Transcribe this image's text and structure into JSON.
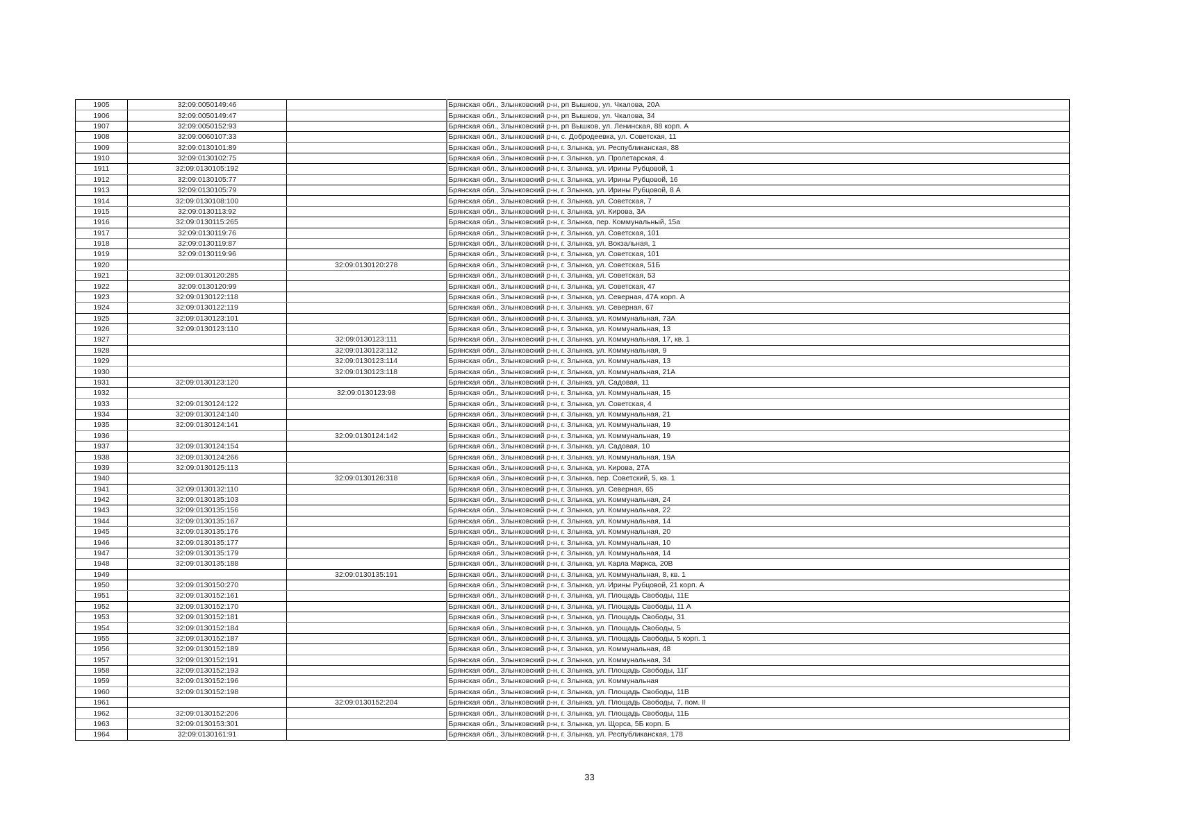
{
  "table": {
    "rows": [
      [
        "1905",
        "32:09:0050149:46",
        "",
        "Брянская обл., Злынковский р-н, рп Вышков, ул. Чкалова, 20А"
      ],
      [
        "1906",
        "32:09:0050149:47",
        "",
        "Брянская обл., Злынковский р-н, рп Вышков, ул. Чкалова, 34"
      ],
      [
        "1907",
        "32:09:0050152:93",
        "",
        "Брянская обл., Злынковский р-н, рп Вышков, ул. Ленинская, 88 корп. А"
      ],
      [
        "1908",
        "32:09:0060107:33",
        "",
        "Брянская обл., Злынковский р-н, с. Добродеевка, ул. Советская, 11"
      ],
      [
        "1909",
        "32:09:0130101:89",
        "",
        "Брянская обл., Злынковский р-н, г. Злынка, ул. Республиканская, 88"
      ],
      [
        "1910",
        "32:09:0130102:75",
        "",
        "Брянская обл., Злынковский р-н, г. Злынка, ул. Пролетарская, 4"
      ],
      [
        "1911",
        "32:09:0130105:192",
        "",
        "Брянская обл., Злынковский р-н, г. Злынка, ул. Ирины Рубцовой, 1"
      ],
      [
        "1912",
        "32:09:0130105:77",
        "",
        "Брянская обл., Злынковский р-н, г. Злынка, ул. Ирины Рубцовой, 16"
      ],
      [
        "1913",
        "32:09:0130105:79",
        "",
        "Брянская обл., Злынковский р-н, г. Злынка, ул. Ирины Рубцовой, 8 А"
      ],
      [
        "1914",
        "32:09:0130108:100",
        "",
        "Брянская обл., Злынковский р-н, г. Злынка, ул. Советская, 7"
      ],
      [
        "1915",
        "32:09:0130113:92",
        "",
        "Брянская обл., Злынковский р-н, г. Злынка, ул. Кирова, 3А"
      ],
      [
        "1916",
        "32:09:0130115:265",
        "",
        "Брянская обл., Злынковский р-н, г. Злынка, пер. Коммунальный, 15а"
      ],
      [
        "1917",
        "32:09:0130119:76",
        "",
        "Брянская обл., Злынковский р-н, г. Злынка, ул. Советская, 101"
      ],
      [
        "1918",
        "32:09:0130119:87",
        "",
        "Брянская обл., Злынковский р-н, г. Злынка, ул. Вокзальная, 1"
      ],
      [
        "1919",
        "32:09:0130119:96",
        "",
        "Брянская обл., Злынковский р-н, г. Злынка, ул. Советская, 101"
      ],
      [
        "1920",
        "",
        "32:09:0130120:278",
        "Брянская обл., Злынковский р-н, г. Злынка, ул. Советская, 51Б"
      ],
      [
        "1921",
        "32:09:0130120:285",
        "",
        "Брянская обл., Злынковский р-н, г. Злынка, ул. Советская, 53"
      ],
      [
        "1922",
        "32:09:0130120:99",
        "",
        "Брянская обл., Злынковский р-н, г. Злынка, ул. Советская, 47"
      ],
      [
        "1923",
        "32:09:0130122:118",
        "",
        "Брянская обл., Злынковский р-н, г. Злынка, ул. Северная, 47А корп. А"
      ],
      [
        "1924",
        "32:09:0130122:119",
        "",
        "Брянская обл., Злынковский р-н, г. Злынка, ул. Северная, 67"
      ],
      [
        "1925",
        "32:09:0130123:101",
        "",
        "Брянская обл., Злынковский р-н, г. Злынка, ул. Коммунальная, 73А"
      ],
      [
        "1926",
        "32:09:0130123:110",
        "",
        "Брянская обл., Злынковский р-н, г. Злынка, ул. Коммунальная, 13"
      ],
      [
        "1927",
        "",
        "32:09:0130123:111",
        "Брянская обл., Злынковский р-н, г. Злынка, ул. Коммунальная, 17, кв. 1"
      ],
      [
        "1928",
        "",
        "32:09:0130123:112",
        "Брянская обл., Злынковский р-н, г. Злынка, ул. Коммунальная, 9"
      ],
      [
        "1929",
        "",
        "32:09:0130123:114",
        "Брянская обл., Злынковский р-н, г. Злынка, ул. Коммунальная, 13"
      ],
      [
        "1930",
        "",
        "32:09:0130123:118",
        "Брянская обл., Злынковский р-н, г. Злынка, ул. Коммунальная, 21А"
      ],
      [
        "1931",
        "32:09:0130123:120",
        "",
        "Брянская обл., Злынковский р-н, г. Злынка, ул. Садовая, 11"
      ],
      [
        "1932",
        "",
        "32:09:0130123:98",
        "Брянская обл., Злынковский р-н, г. Злынка, ул. Коммунальная, 15"
      ],
      [
        "1933",
        "32:09:0130124:122",
        "",
        "Брянская обл., Злынковский р-н, г. Злынка, ул. Советская, 4"
      ],
      [
        "1934",
        "32:09:0130124:140",
        "",
        "Брянская обл., Злынковский р-н, г. Злынка, ул. Коммунальная, 21"
      ],
      [
        "1935",
        "32:09:0130124:141",
        "",
        "Брянская обл., Злынковский р-н, г. Злынка, ул. Коммунальная, 19"
      ],
      [
        "1936",
        "",
        "32:09:0130124:142",
        "Брянская обл., Злынковский р-н, г. Злынка, ул. Коммунальная, 19"
      ],
      [
        "1937",
        "32:09:0130124:154",
        "",
        "Брянская обл., Злынковский р-н, г. Злынка, ул. Садовая, 10"
      ],
      [
        "1938",
        "32:09:0130124:266",
        "",
        "Брянская обл., Злынковский р-н, г. Злынка, ул. Коммунальная, 19А"
      ],
      [
        "1939",
        "32:09:0130125:113",
        "",
        "Брянская обл., Злынковский р-н, г. Злынка, ул. Кирова, 27А"
      ],
      [
        "1940",
        "",
        "32:09:0130126:318",
        "Брянская обл., Злынковский р-н, г. Злынка, пер. Советский, 5, кв. 1"
      ],
      [
        "1941",
        "32:09:0130132:110",
        "",
        "Брянская обл., Злынковский р-н, г. Злынка, ул. Северная, 65"
      ],
      [
        "1942",
        "32:09:0130135:103",
        "",
        "Брянская обл., Злынковский р-н, г. Злынка, ул. Коммунальная, 24"
      ],
      [
        "1943",
        "32:09:0130135:156",
        "",
        "Брянская обл., Злынковский р-н, г. Злынка, ул. Коммунальная, 22"
      ],
      [
        "1944",
        "32:09:0130135:167",
        "",
        "Брянская обл., Злынковский р-н, г. Злынка, ул. Коммунальная, 14"
      ],
      [
        "1945",
        "32:09:0130135:176",
        "",
        "Брянская обл., Злынковский р-н, г. Злынка, ул. Коммунальная, 20"
      ],
      [
        "1946",
        "32:09:0130135:177",
        "",
        "Брянская обл., Злынковский р-н, г. Злынка, ул. Коммунальная, 10"
      ],
      [
        "1947",
        "32:09:0130135:179",
        "",
        "Брянская обл., Злынковский р-н, г. Злынка, ул. Коммунальная, 14"
      ],
      [
        "1948",
        "32:09:0130135:188",
        "",
        "Брянская обл., Злынковский р-н, г. Злынка, ул. Карла Маркса, 20В"
      ],
      [
        "1949",
        "",
        "32:09:0130135:191",
        "Брянская обл., Злынковский р-н, г. Злынка, ул. Коммунальная, 8, кв. 1"
      ],
      [
        "1950",
        "32:09:0130150:270",
        "",
        "Брянская обл., Злынковский р-н, г. Злынка, ул. Ирины Рубцовой, 21 корп. А"
      ],
      [
        "1951",
        "32:09:0130152:161",
        "",
        "Брянская обл., Злынковский р-н, г. Злынка, ул. Площадь Свободы, 11Е"
      ],
      [
        "1952",
        "32:09:0130152:170",
        "",
        "Брянская обл., Злынковский р-н, г. Злынка, ул. Площадь Свободы, 11 А"
      ],
      [
        "1953",
        "32:09:0130152:181",
        "",
        "Брянская обл., Злынковский р-н, г. Злынка, ул. Площадь Свободы, 31"
      ],
      [
        "1954",
        "32:09:0130152:184",
        "",
        "Брянская обл., Злынковский р-н, г. Злынка, ул. Площадь Свободы, 5"
      ],
      [
        "1955",
        "32:09:0130152:187",
        "",
        "Брянская обл., Злынковский р-н, г. Злынка, ул. Площадь Свободы, 5 корп. 1"
      ],
      [
        "1956",
        "32:09:0130152:189",
        "",
        "Брянская обл., Злынковский р-н, г. Злынка, ул. Коммунальная, 48"
      ],
      [
        "1957",
        "32:09:0130152:191",
        "",
        "Брянская обл., Злынковский р-н, г. Злынка, ул. Коммунальная, 34"
      ],
      [
        "1958",
        "32:09:0130152:193",
        "",
        "Брянская обл., Злынковский р-н, г. Злынка, ул. Площадь Свободы, 11Г"
      ],
      [
        "1959",
        "32:09:0130152:196",
        "",
        "Брянская обл., Злынковский р-н, г. Злынка, ул. Коммунальная"
      ],
      [
        "1960",
        "32:09:0130152:198",
        "",
        "Брянская обл., Злынковский р-н, г. Злынка, ул. Площадь Свободы, 11В"
      ],
      [
        "1961",
        "",
        "32:09:0130152:204",
        "Брянская обл., Злынковский р-н, г. Злынка, ул. Площадь Свободы, 7, пом. II"
      ],
      [
        "1962",
        "32:09:0130152:206",
        "",
        "Брянская обл., Злынковский р-н, г. Злынка, ул. Площадь Свободы, 11Б"
      ],
      [
        "1963",
        "32:09:0130153:301",
        "",
        "Брянская обл., Злынковский р-н, г. Злынка, ул. Щорса, 5Б корп. Б"
      ],
      [
        "1964",
        "32:09:0130161:91",
        "",
        "Брянская обл., Злынковский р-н, г. Злынка, ул. Республиканская, 178"
      ]
    ]
  },
  "page_number": "33"
}
